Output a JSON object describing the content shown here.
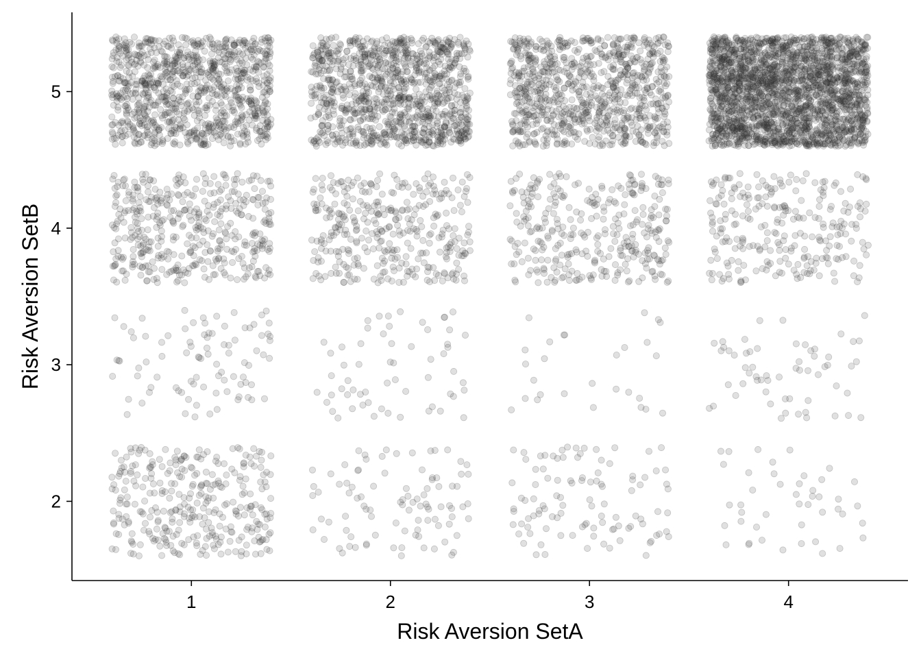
{
  "chart_data": {
    "type": "scatter",
    "title": "",
    "xlabel": "Risk Aversion SetA",
    "ylabel": "Risk Aversion SetB",
    "x_ticks": [
      1,
      2,
      3,
      4
    ],
    "y_ticks": [
      2,
      3,
      4,
      5
    ],
    "xlim": [
      0.4,
      4.6
    ],
    "ylim": [
      1.42,
      5.58
    ],
    "jitter": 0.4,
    "point_alpha": 0.15,
    "grid": false,
    "legend": "none",
    "cell_counts": [
      {
        "x": 1,
        "y": 2,
        "n": 330
      },
      {
        "x": 2,
        "y": 2,
        "n": 95
      },
      {
        "x": 3,
        "y": 2,
        "n": 105
      },
      {
        "x": 4,
        "y": 2,
        "n": 45
      },
      {
        "x": 1,
        "y": 3,
        "n": 90
      },
      {
        "x": 2,
        "y": 3,
        "n": 60
      },
      {
        "x": 3,
        "y": 3,
        "n": 28
      },
      {
        "x": 4,
        "y": 3,
        "n": 60
      },
      {
        "x": 1,
        "y": 4,
        "n": 440
      },
      {
        "x": 2,
        "y": 4,
        "n": 360
      },
      {
        "x": 3,
        "y": 4,
        "n": 330
      },
      {
        "x": 4,
        "y": 4,
        "n": 260
      },
      {
        "x": 1,
        "y": 5,
        "n": 1000
      },
      {
        "x": 2,
        "y": 5,
        "n": 1100
      },
      {
        "x": 3,
        "y": 5,
        "n": 900
      },
      {
        "x": 4,
        "y": 5,
        "n": 2400
      }
    ]
  }
}
